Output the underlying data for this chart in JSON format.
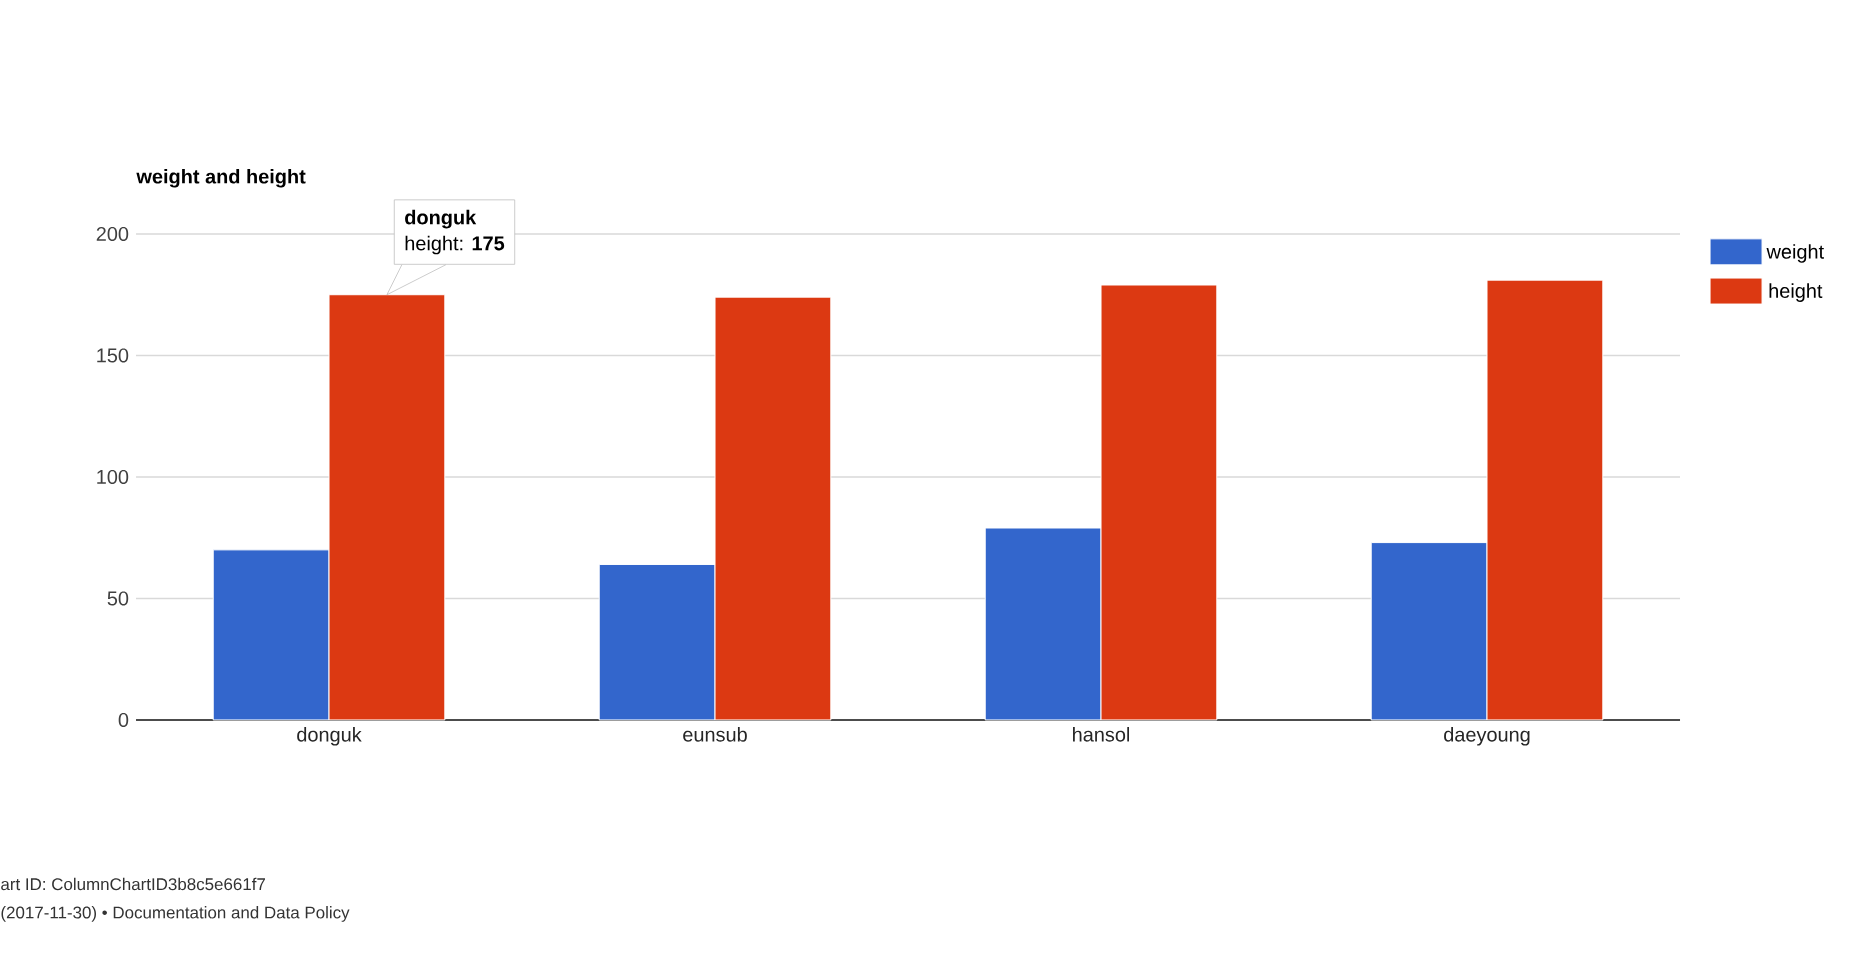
{
  "chart_data": {
    "type": "bar",
    "title": "weight and height",
    "categories": [
      "donguk",
      "eunsub",
      "hansol",
      "daeyoung"
    ],
    "series": [
      {
        "name": "weight",
        "color": "#3366cc",
        "values": [
          70,
          64,
          79,
          73
        ]
      },
      {
        "name": "height",
        "color": "#dc3912",
        "values": [
          175,
          174,
          179,
          181
        ]
      }
    ],
    "ylim": [
      0,
      200
    ],
    "yticks": [
      0,
      50,
      100,
      150,
      200
    ],
    "grid": "y",
    "legend": "top right",
    "annotations": [
      "donguk",
      "height: **175**",
      "art ID: ColumnChartID3b8c5e661f7",
      "(2017-11-30) • Documentation and Data Policy"
    ]
  }
}
